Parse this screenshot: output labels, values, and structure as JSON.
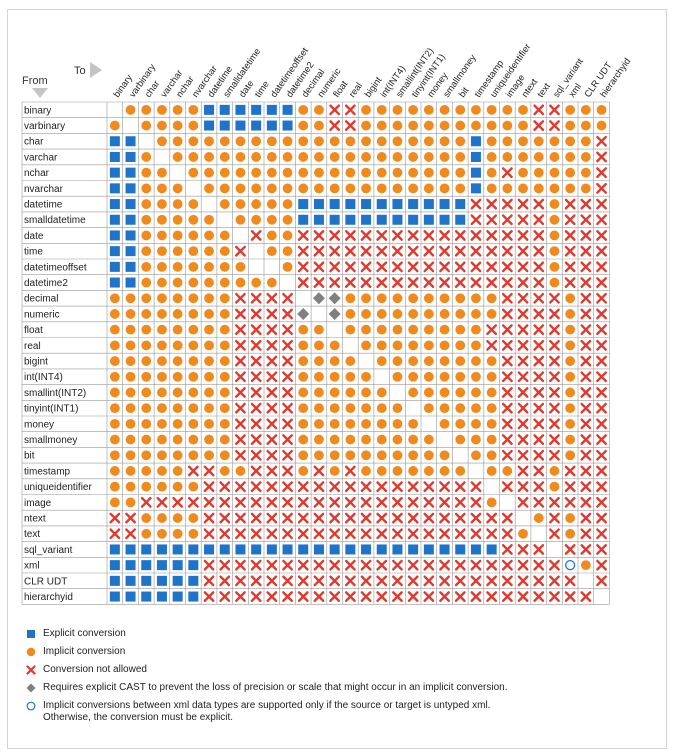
{
  "header": {
    "to_label": "To",
    "from_label": "From"
  },
  "types": [
    "binary",
    "varbinary",
    "char",
    "varchar",
    "nchar",
    "nvarchar",
    "datetime",
    "smalldatetime",
    "date",
    "time",
    "datetimeoffset",
    "datetime2",
    "decimal",
    "numeric",
    "float",
    "real",
    "bigint",
    "int(INT4)",
    "smallint(INT2)",
    "tinyint(INT1)",
    "money",
    "smallmoney",
    "bit",
    "timestamp",
    "uniqueidentifier",
    "image",
    "ntext",
    "text",
    "sql_variant",
    "xml",
    "CLR UDT",
    "hierarchyid"
  ],
  "symbol_codes": {
    "E": "explicit",
    "I": "implicit",
    "X": "not-allowed",
    "D": "explicit-cast-required",
    "O": "xml-implicit",
    "-": "none"
  },
  "matrix": [
    "-IIIIIEEEEEEIIXXIIIIIIIIIIIXXIII",
    "I-IIIIEEEEEEIIXXIIIIIIIIIIIXXIII",
    "EE-IIIIIIIIIIIIIIIIIIIIEIIIIIIIX",
    "EEI-IIIIIIIIIIIIIIIIIIIEIIIIIIIX",
    "EEII-IIIIIIIIIIIIIIIIIIEIXIIIIIX",
    "EEIII-IIIIIIIIIIIIIIIIIEIIIIIIIX",
    "EEIIII-IIIIIEEEEEEEEEEEXXXXXIXXX",
    "EEIIIII-IIIIEEEEEEEEEEEXXXXXIXXX",
    "EEIIIIII-XIIXXXXXXXXXXXXXXXXIXXX",
    "EEIIIIIIX-IIXXXXXXXXXXXXXXXXIXXX",
    "EEIIIIIII--IXXXXXXXXXXXXXXXXIXXX",
    "EEIIIIIIIII-XXXXXXXXXXXXXXXXIXXX",
    "IIIIIIIIXXXX-DDIIIIIIIIIIXXXXIXX",
    "IIIIIIIIXXXXD-DIIIIIIIIIIXXXXIXX",
    "IIIIIIIIXXXXII-IIIIIIIIIXXXXXIXX",
    "IIIIIIIIXXXXIII-IIIIIIIIXXXXXIXX",
    "IIIIIIIIXXXXIIII-IIIIIIIIXXXXIXX",
    "IIIIIIIIXXXXIIIII-IIIIIIIXXXXIXX",
    "IIIIIIIIXXXXIIIIII-IIIIIIXXXXIXX",
    "IIIIIIIIXXXXIIIIIII-IIIIIXXXXIXX",
    "IIIIIIIIXXXXIIIIIIII-IIIIXXXXIXX",
    "IIIIIIIIXXXXIIIIIIIII-IIIXXXXIXX",
    "IIIIIIIIXXXXIIIIIIIIII-IIXXXXIXX",
    "IIIIIXXIIXXXIXIXIIIIIII-IIXXIXXX",
    "IIIIIIXXXXXXXXXXXXXXXXXX-XXXIXXX",
    "IIXXXXXXXXXXXXXXXXXXXXXXI-XXXXXX",
    "XXIIIIXXXXXXXXXXXXXXXXXXXX-IXIXX",
    "XXIIIIXXXXXXXXXXXXXXXXXXXXI-XIXX",
    "EEEEEEEEEEEEEEEEEEEEEEEEEXXX-XXX",
    "EEEEEEXXXXXXXXXXXXXXXXXXXXXXXOIX",
    "EEEEEEXXXXXXXXXXXXXXXXXXXXXXXX-X",
    "EEEEEEXXXXXXXXXXXXXXXXXXXXXXXXX-"
  ],
  "colors": {
    "explicit": "#1f73c9",
    "implicit": "#f08a1c",
    "not_allowed": "#e0392e",
    "explicit_cast": "#808080",
    "xml_implicit": "#1f73c9",
    "grid": "#9a9a9a",
    "header_arrow": "#c4c4c4"
  },
  "legend": {
    "explicit": "Explicit conversion",
    "implicit": "Implicit conversion",
    "not_allowed": "Conversion not allowed",
    "explicit_cast": "Requires explicit CAST to prevent the loss of precision or scale that might occur in an implicit conversion.",
    "xml_line1": "Implicit conversions between xml data types are supported only if the source or target is untyped xml.",
    "xml_line2": "Otherwise, the conversion must be explicit."
  }
}
